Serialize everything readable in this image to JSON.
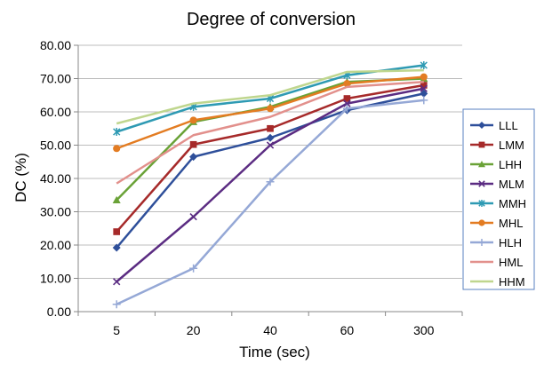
{
  "chart_data": {
    "type": "line",
    "title": "Degree of conversion",
    "xlabel": "Time (sec)",
    "ylabel": "DC (%)",
    "categories": [
      "5",
      "20",
      "40",
      "60",
      "300"
    ],
    "ylim": [
      0,
      80
    ],
    "yticks": [
      "0.00",
      "10.00",
      "20.00",
      "30.00",
      "40.00",
      "50.00",
      "60.00",
      "70.00",
      "80.00"
    ],
    "grid": true,
    "legend_position": "right",
    "series": [
      {
        "name": "LLL",
        "color": "#2E4F9A",
        "marker": "diamond",
        "values": [
          19.2,
          46.5,
          52.2,
          60.5,
          65.5
        ]
      },
      {
        "name": "LMM",
        "color": "#A62A2A",
        "marker": "square",
        "values": [
          24.0,
          50.2,
          55.0,
          64.0,
          68.0
        ]
      },
      {
        "name": "LHH",
        "color": "#6AA237",
        "marker": "triangle",
        "values": [
          33.5,
          57.0,
          61.5,
          69.0,
          70.0
        ]
      },
      {
        "name": "MLM",
        "color": "#5B2C82",
        "marker": "x",
        "values": [
          9.0,
          28.5,
          50.0,
          62.5,
          67.0
        ]
      },
      {
        "name": "MMH",
        "color": "#2E9AB3",
        "marker": "asterisk",
        "values": [
          54.0,
          61.5,
          64.0,
          71.0,
          74.0
        ]
      },
      {
        "name": "MHL",
        "color": "#E37C22",
        "marker": "circle",
        "values": [
          49.0,
          57.5,
          61.0,
          68.5,
          70.5
        ]
      },
      {
        "name": "HLH",
        "color": "#95A8D6",
        "marker": "plus",
        "values": [
          2.2,
          13.0,
          39.0,
          61.0,
          63.5
        ]
      },
      {
        "name": "HML",
        "color": "#E2908C",
        "marker": "none",
        "values": [
          38.5,
          53.0,
          58.5,
          67.5,
          69.0
        ]
      },
      {
        "name": "HHM",
        "color": "#BFD68E",
        "marker": "none",
        "values": [
          56.5,
          62.5,
          65.0,
          72.0,
          72.5
        ]
      }
    ]
  }
}
